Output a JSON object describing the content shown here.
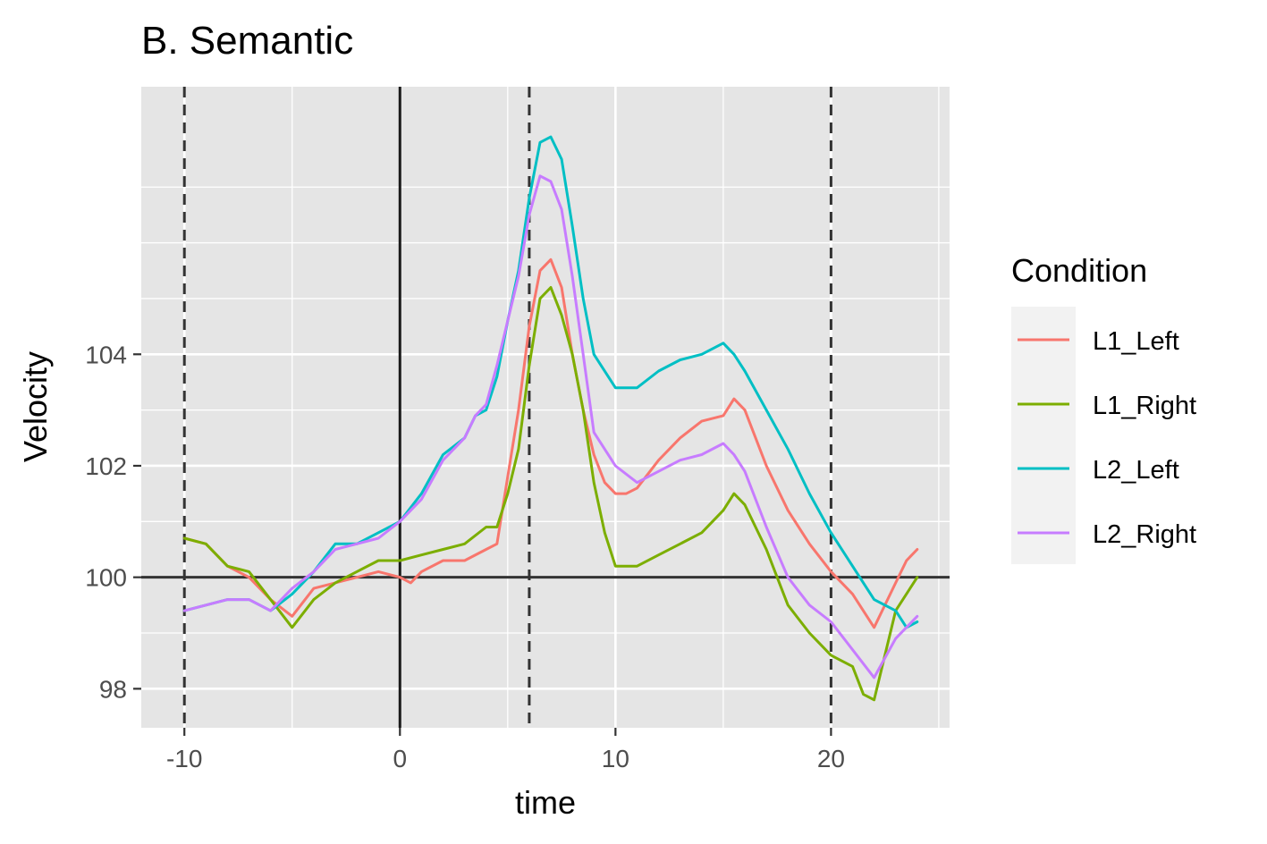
{
  "chart_data": {
    "type": "line",
    "title": "B. Semantic",
    "xlabel": "time",
    "ylabel": "Velocity",
    "xlim": [
      -12,
      25.5
    ],
    "ylim": [
      97.3,
      108.8
    ],
    "x_ticks": [
      -10,
      0,
      10,
      20
    ],
    "x_tick_labels": [
      "-10",
      "0",
      "10",
      "20"
    ],
    "y_ticks": [
      98,
      100,
      102,
      104
    ],
    "y_tick_labels": [
      "98",
      "100",
      "102",
      "104"
    ],
    "x_minor_ticks": [
      -5,
      5,
      15,
      25
    ],
    "y_minor_ticks": [
      99,
      101,
      103,
      105,
      106,
      107
    ],
    "grid": true,
    "background": "#e5e5e5",
    "reference_lines": {
      "hline_solid": 100,
      "vline_solid": 0,
      "vlines_dashed": [
        -10,
        6,
        20
      ]
    },
    "legend": {
      "title": "Condition",
      "position": "right"
    },
    "series": [
      {
        "name": "L1_Left",
        "color": "#F8766D",
        "x": [
          -10,
          -9,
          -8,
          -7,
          -6,
          -5,
          -4,
          -3,
          -2,
          -1,
          0,
          0.5,
          1,
          2,
          3,
          4,
          4.5,
          5,
          5.5,
          6,
          6.5,
          7,
          7.5,
          8,
          8.5,
          9,
          9.5,
          10,
          10.5,
          11,
          12,
          13,
          14,
          15,
          15.5,
          16,
          17,
          18,
          19,
          20,
          21,
          22,
          23,
          23.5,
          24
        ],
        "y": [
          100.7,
          100.6,
          100.2,
          100.0,
          99.6,
          99.3,
          99.8,
          99.9,
          100.0,
          100.1,
          100.0,
          99.9,
          100.1,
          100.3,
          100.3,
          100.5,
          100.6,
          101.8,
          103.0,
          104.5,
          105.5,
          105.7,
          105.2,
          104.0,
          103.0,
          102.2,
          101.7,
          101.5,
          101.5,
          101.6,
          102.1,
          102.5,
          102.8,
          102.9,
          103.2,
          103.0,
          102.0,
          101.2,
          100.6,
          100.1,
          99.7,
          99.1,
          99.9,
          100.3,
          100.5
        ]
      },
      {
        "name": "L1_Right",
        "color": "#7CAE00",
        "x": [
          -10,
          -9,
          -8,
          -7,
          -6,
          -5,
          -4,
          -3,
          -2,
          -1,
          0,
          1,
          2,
          3,
          4,
          4.5,
          5,
          5.5,
          6,
          6.5,
          7,
          7.5,
          8,
          8.5,
          9,
          9.5,
          10,
          11,
          12,
          13,
          14,
          15,
          15.5,
          16,
          17,
          18,
          19,
          20,
          21,
          21.5,
          22,
          23,
          24
        ],
        "y": [
          100.7,
          100.6,
          100.2,
          100.1,
          99.6,
          99.1,
          99.6,
          99.9,
          100.1,
          100.3,
          100.3,
          100.4,
          100.5,
          100.6,
          100.9,
          100.9,
          101.5,
          102.3,
          103.8,
          105.0,
          105.2,
          104.7,
          104.0,
          103.0,
          101.7,
          100.8,
          100.2,
          100.2,
          100.4,
          100.6,
          100.8,
          101.2,
          101.5,
          101.3,
          100.5,
          99.5,
          99.0,
          98.6,
          98.4,
          97.9,
          97.8,
          99.4,
          100.0
        ]
      },
      {
        "name": "L2_Left",
        "color": "#00BFC4",
        "x": [
          -10,
          -9,
          -8,
          -7,
          -6,
          -5,
          -4,
          -3,
          -2,
          -1,
          0,
          1,
          2,
          3,
          3.5,
          4,
          4.5,
          5,
          5.5,
          6,
          6.5,
          7,
          7.5,
          8,
          8.5,
          9,
          10,
          11,
          12,
          13,
          14,
          15,
          15.5,
          16,
          17,
          18,
          19,
          20,
          21,
          22,
          23,
          23.5,
          24
        ],
        "y": [
          99.4,
          99.5,
          99.6,
          99.6,
          99.4,
          99.7,
          100.1,
          100.6,
          100.6,
          100.8,
          101.0,
          101.5,
          102.2,
          102.5,
          102.9,
          103.0,
          103.6,
          104.6,
          105.5,
          106.8,
          107.8,
          107.9,
          107.5,
          106.3,
          105.0,
          104.0,
          103.4,
          103.4,
          103.7,
          103.9,
          104.0,
          104.2,
          104.0,
          103.7,
          103.0,
          102.3,
          101.5,
          100.8,
          100.2,
          99.6,
          99.4,
          99.1,
          99.2
        ]
      },
      {
        "name": "L2_Right",
        "color": "#C77CFF",
        "x": [
          -10,
          -9,
          -8,
          -7,
          -6,
          -5,
          -4,
          -3,
          -2,
          -1,
          0,
          1,
          2,
          3,
          3.5,
          4,
          4.5,
          5,
          5.5,
          6,
          6.5,
          7,
          7.5,
          8,
          8.5,
          9,
          10,
          11,
          12,
          13,
          14,
          15,
          15.5,
          16,
          17,
          18,
          19,
          20,
          21,
          22,
          23,
          24
        ],
        "y": [
          99.4,
          99.5,
          99.6,
          99.6,
          99.4,
          99.8,
          100.1,
          100.5,
          100.6,
          100.7,
          101.0,
          101.4,
          102.1,
          102.5,
          102.9,
          103.1,
          103.8,
          104.6,
          105.4,
          106.5,
          107.2,
          107.1,
          106.6,
          105.4,
          104.0,
          102.6,
          102.0,
          101.7,
          101.9,
          102.1,
          102.2,
          102.4,
          102.2,
          101.9,
          100.9,
          100.0,
          99.5,
          99.2,
          98.7,
          98.2,
          98.9,
          99.3
        ]
      }
    ]
  }
}
